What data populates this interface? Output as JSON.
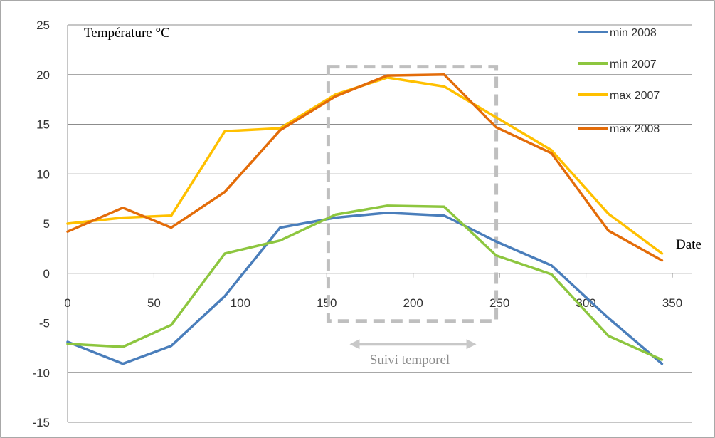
{
  "chart_data": {
    "type": "line",
    "title": "",
    "ylabel": "Température °C",
    "xlabel": "Date",
    "xlim": [
      0,
      350
    ],
    "ylim": [
      -15,
      25
    ],
    "xticks": [
      0,
      50,
      100,
      150,
      200,
      250,
      300,
      350
    ],
    "yticks": [
      -15,
      -10,
      -5,
      0,
      5,
      10,
      15,
      20,
      25
    ],
    "ytick_labels": [
      "-15",
      "-10",
      "-5",
      "0",
      "5",
      "10",
      "15",
      "20",
      "25"
    ],
    "xtick_labels": [
      "0",
      "50",
      "100",
      "150",
      "200",
      "250",
      "300",
      "350"
    ],
    "grid": "horizontal",
    "legend_position": "top-right",
    "series": [
      {
        "name": "min 2008",
        "color": "#4a7ebb",
        "x": [
          0,
          32,
          60,
          91,
          123,
          155,
          185,
          218,
          248,
          280,
          313,
          344
        ],
        "y": [
          -6.9,
          -9.1,
          -7.3,
          -2.3,
          4.6,
          5.6,
          6.1,
          5.8,
          3.2,
          0.8,
          -4.5,
          -9.1
        ]
      },
      {
        "name": "min 2007",
        "color": "#8dc63f",
        "x": [
          0,
          32,
          60,
          91,
          123,
          155,
          185,
          218,
          248,
          280,
          313,
          344
        ],
        "y": [
          -7.1,
          -7.4,
          -5.2,
          2.0,
          3.3,
          5.9,
          6.8,
          6.7,
          1.8,
          -0.1,
          -6.3,
          -8.7
        ]
      },
      {
        "name": "max 2007",
        "color": "#ffc000",
        "x": [
          0,
          32,
          60,
          91,
          123,
          155,
          185,
          218,
          248,
          280,
          313,
          344
        ],
        "y": [
          5.0,
          5.6,
          5.8,
          14.3,
          14.6,
          18.0,
          19.7,
          18.8,
          15.7,
          12.4,
          6.0,
          2.0
        ]
      },
      {
        "name": "max 2008",
        "color": "#e36c09",
        "x": [
          0,
          32,
          60,
          91,
          123,
          155,
          185,
          218,
          248,
          280,
          313,
          344
        ],
        "y": [
          4.2,
          6.6,
          4.6,
          8.2,
          14.4,
          17.8,
          19.9,
          20.0,
          14.7,
          12.1,
          4.3,
          1.3
        ]
      }
    ],
    "annotations": {
      "highlight_box": {
        "x_range": [
          155,
          244
        ],
        "y_range": [
          -4.8,
          20.8
        ],
        "color": "#bfbfbf"
      },
      "arrow": {
        "x_range": [
          155,
          244
        ],
        "y": -6.7,
        "color": "#c8c8c8"
      },
      "arrow_label": "Suivi temporel"
    }
  }
}
